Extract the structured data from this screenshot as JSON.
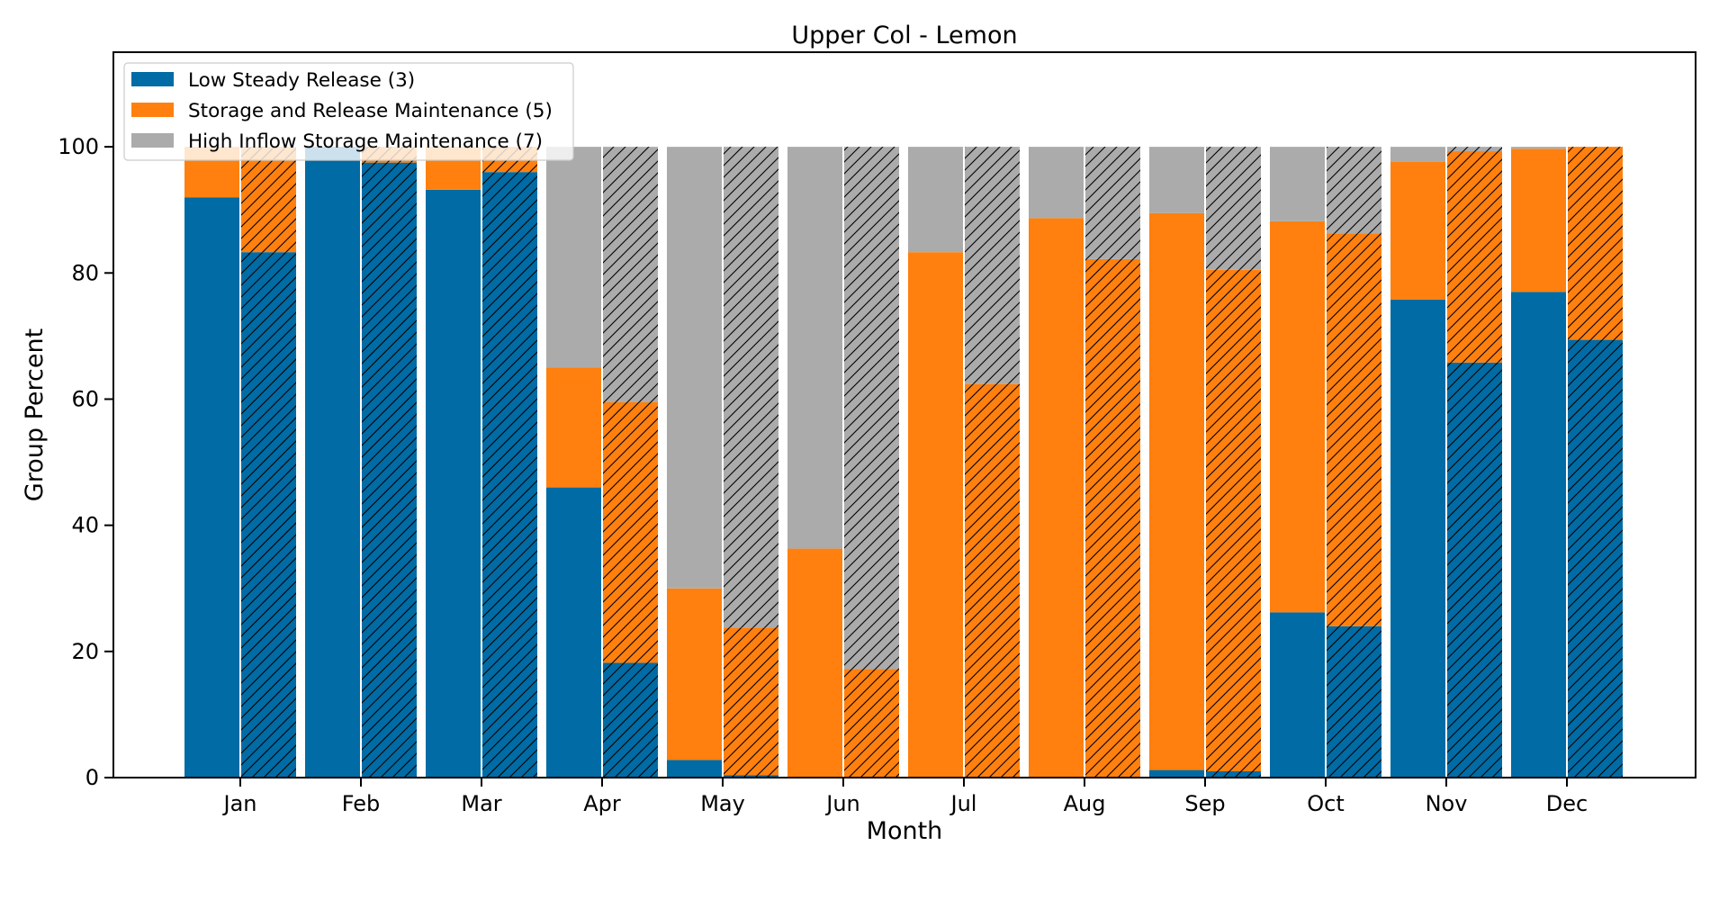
{
  "chart_data": {
    "type": "bar",
    "stacked": true,
    "title": "Upper Col - Lemon",
    "xlabel": "Month",
    "ylabel": "Group Percent",
    "ylim": [
      0,
      115
    ],
    "yticks": [
      0,
      20,
      40,
      60,
      80,
      100
    ],
    "legend_position": "top-left",
    "grid": false,
    "categories": [
      "Jan",
      "Feb",
      "Mar",
      "Apr",
      "May",
      "Jun",
      "Jul",
      "Aug",
      "Sep",
      "Oct",
      "Nov",
      "Dec"
    ],
    "bar_groups": [
      {
        "hatched": false,
        "series": [
          {
            "name": "Low Steady Release (3)",
            "color": "#006BA4",
            "values": [
              92.0,
              100.0,
              93.2,
              46.0,
              2.8,
              0.0,
              0.0,
              0.0,
              1.2,
              26.2,
              75.8,
              77.0
            ]
          },
          {
            "name": "Storage and Release Maintenance (5)",
            "color": "#FF800E",
            "values": [
              8.0,
              0.0,
              6.8,
              19.0,
              27.2,
              36.3,
              83.3,
              88.7,
              88.3,
              62.0,
              21.8,
              22.7
            ]
          },
          {
            "name": "High Inflow Storage Maintenance (7)",
            "color": "#ABABAB",
            "values": [
              0.0,
              0.0,
              0.0,
              35.0,
              70.0,
              63.7,
              16.7,
              11.3,
              10.5,
              11.8,
              2.4,
              0.3
            ]
          }
        ]
      },
      {
        "hatched": true,
        "series": [
          {
            "name": "Low Steady Release (3)",
            "color": "#006BA4",
            "values": [
              83.3,
              97.5,
              96.0,
              18.2,
              0.4,
              0.0,
              0.0,
              0.0,
              1.0,
              24.0,
              65.8,
              69.4
            ]
          },
          {
            "name": "Storage and Release Maintenance (5)",
            "color": "#FF800E",
            "values": [
              16.7,
              2.5,
              4.0,
              41.3,
              23.4,
              17.2,
              62.4,
              82.2,
              79.5,
              62.3,
              33.5,
              30.6
            ]
          },
          {
            "name": "High Inflow Storage Maintenance (7)",
            "color": "#ABABAB",
            "values": [
              0.0,
              0.0,
              0.0,
              40.5,
              76.2,
              82.8,
              37.6,
              17.8,
              19.5,
              13.7,
              0.7,
              0.0
            ]
          }
        ]
      }
    ],
    "legend": [
      {
        "label": "Low Steady Release (3)",
        "color": "#006BA4"
      },
      {
        "label": "Storage and Release Maintenance (5)",
        "color": "#FF800E"
      },
      {
        "label": "High Inflow Storage Maintenance (7)",
        "color": "#ABABAB"
      }
    ]
  }
}
